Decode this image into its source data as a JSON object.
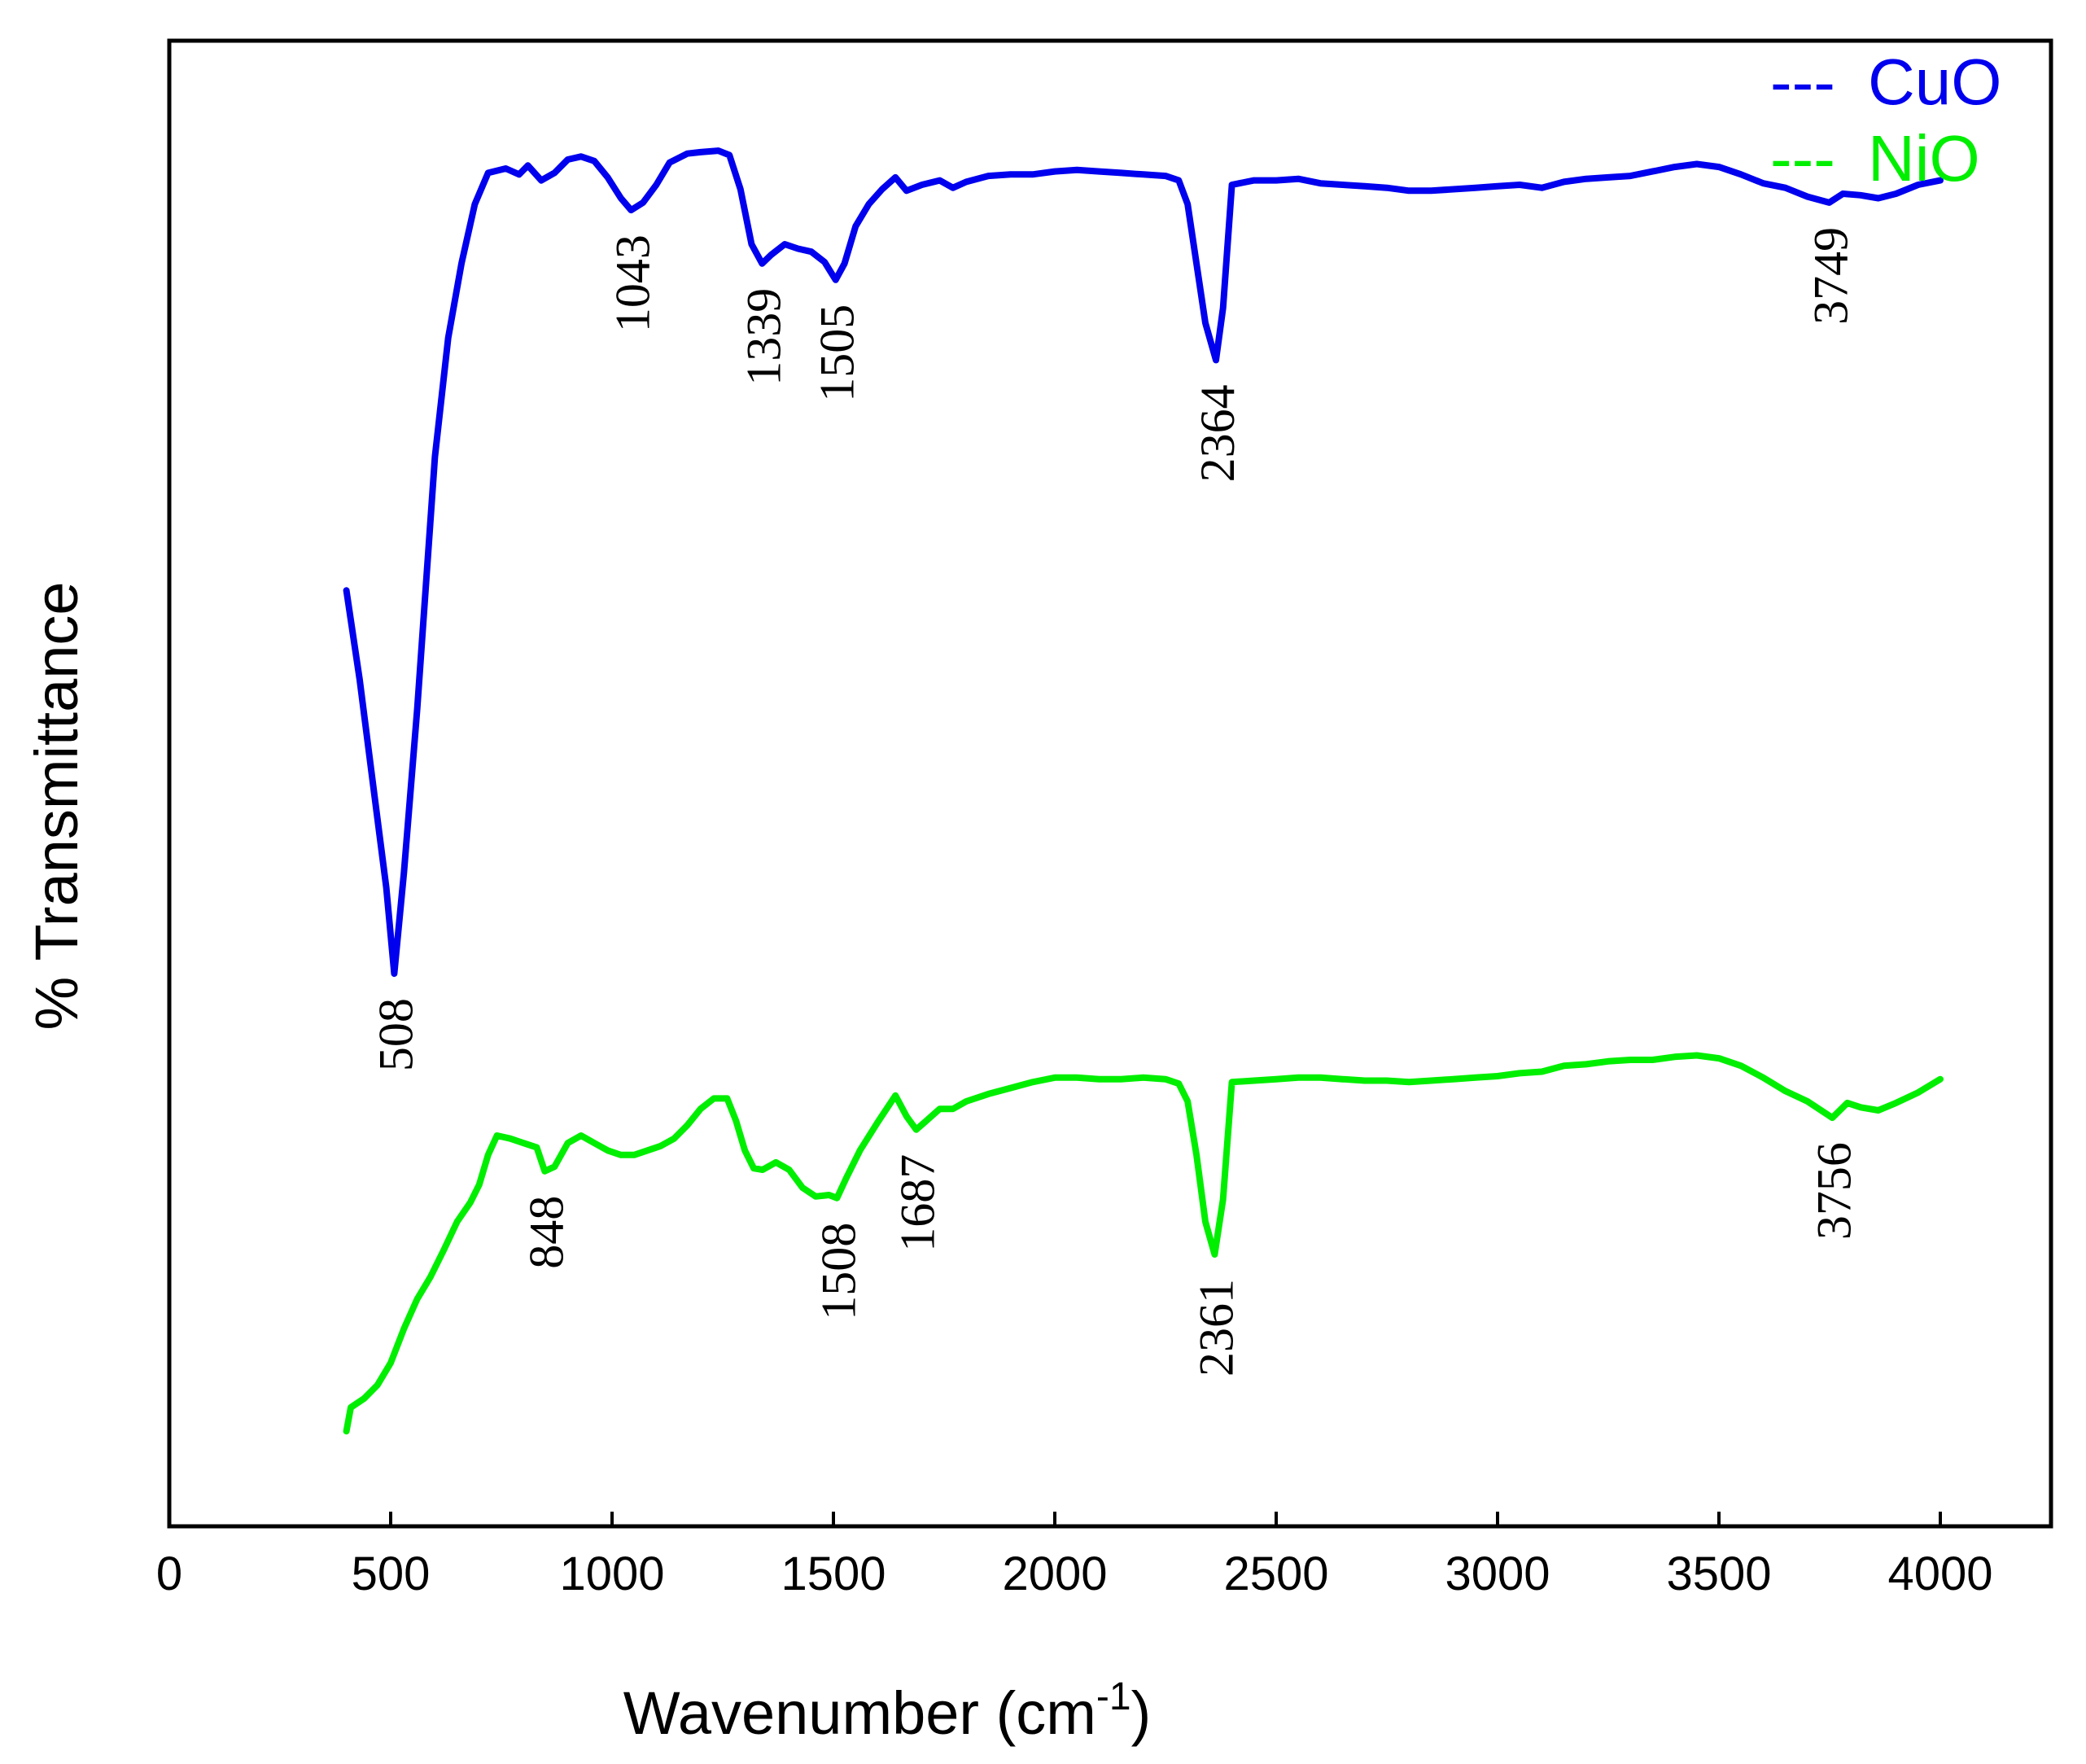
{
  "chart_data": {
    "type": "line",
    "title": "",
    "xlabel": "Wavenumber (cm",
    "xlabel_sup": "-1",
    "xlabel_close": ")",
    "ylabel": "% Transmittance",
    "xlim": [
      0,
      4250
    ],
    "ylim": [
      0,
      100
    ],
    "x_ticks": [
      0,
      500,
      1000,
      1500,
      2000,
      2500,
      3000,
      3500,
      4000
    ],
    "x_tick_labels": [
      "0",
      "500",
      "1000",
      "1500",
      "2000",
      "2500",
      "3000",
      "3500",
      "4000"
    ],
    "grid": false,
    "legend_position": "top-right",
    "series": [
      {
        "name": "CuO",
        "legend_marker": "---",
        "color": "#0000ee",
        "points": [
          [
            400,
            63
          ],
          [
            430,
            57
          ],
          [
            460,
            50
          ],
          [
            490,
            43
          ],
          [
            508,
            37.2
          ],
          [
            530,
            44
          ],
          [
            560,
            55
          ],
          [
            600,
            72
          ],
          [
            630,
            80
          ],
          [
            660,
            85
          ],
          [
            690,
            89
          ],
          [
            720,
            91.1
          ],
          [
            760,
            91.4
          ],
          [
            790,
            91
          ],
          [
            810,
            91.6
          ],
          [
            840,
            90.6
          ],
          [
            870,
            91.1
          ],
          [
            900,
            92
          ],
          [
            930,
            92.2
          ],
          [
            960,
            91.9
          ],
          [
            990,
            90.8
          ],
          [
            1020,
            89.4
          ],
          [
            1043,
            88.6
          ],
          [
            1070,
            89.1
          ],
          [
            1100,
            90.3
          ],
          [
            1130,
            91.8
          ],
          [
            1170,
            92.4
          ],
          [
            1200,
            92.5
          ],
          [
            1240,
            92.6
          ],
          [
            1265,
            92.3
          ],
          [
            1290,
            90
          ],
          [
            1315,
            86.3
          ],
          [
            1339,
            85
          ],
          [
            1360,
            85.6
          ],
          [
            1390,
            86.3
          ],
          [
            1420,
            86
          ],
          [
            1450,
            85.8
          ],
          [
            1480,
            85.1
          ],
          [
            1505,
            83.9
          ],
          [
            1525,
            85
          ],
          [
            1550,
            87.5
          ],
          [
            1580,
            89
          ],
          [
            1610,
            90
          ],
          [
            1640,
            90.8
          ],
          [
            1665,
            89.9
          ],
          [
            1700,
            90.3
          ],
          [
            1740,
            90.6
          ],
          [
            1770,
            90.1
          ],
          [
            1800,
            90.5
          ],
          [
            1850,
            90.9
          ],
          [
            1900,
            91
          ],
          [
            1950,
            91
          ],
          [
            2000,
            91.2
          ],
          [
            2050,
            91.3
          ],
          [
            2100,
            91.2
          ],
          [
            2150,
            91.1
          ],
          [
            2200,
            91
          ],
          [
            2250,
            90.9
          ],
          [
            2280,
            90.6
          ],
          [
            2300,
            89
          ],
          [
            2320,
            85
          ],
          [
            2340,
            81
          ],
          [
            2364,
            78.5
          ],
          [
            2380,
            82
          ],
          [
            2400,
            90.3
          ],
          [
            2450,
            90.6
          ],
          [
            2500,
            90.6
          ],
          [
            2550,
            90.7
          ],
          [
            2600,
            90.4
          ],
          [
            2650,
            90.3
          ],
          [
            2700,
            90.2
          ],
          [
            2750,
            90.1
          ],
          [
            2800,
            89.9
          ],
          [
            2850,
            89.9
          ],
          [
            2900,
            90
          ],
          [
            2950,
            90.1
          ],
          [
            3000,
            90.2
          ],
          [
            3050,
            90.3
          ],
          [
            3100,
            90.1
          ],
          [
            3150,
            90.5
          ],
          [
            3200,
            90.7
          ],
          [
            3250,
            90.8
          ],
          [
            3300,
            90.9
          ],
          [
            3350,
            91.2
          ],
          [
            3400,
            91.5
          ],
          [
            3450,
            91.7
          ],
          [
            3500,
            91.5
          ],
          [
            3550,
            91
          ],
          [
            3600,
            90.4
          ],
          [
            3650,
            90.1
          ],
          [
            3700,
            89.5
          ],
          [
            3749,
            89.1
          ],
          [
            3780,
            89.7
          ],
          [
            3820,
            89.6
          ],
          [
            3860,
            89.4
          ],
          [
            3900,
            89.7
          ],
          [
            3950,
            90.3
          ],
          [
            4000,
            90.6
          ]
        ],
        "peaks": [
          508,
          1043,
          1339,
          1505,
          2364,
          3749
        ],
        "peak_labels": [
          "508",
          "1043",
          "1339",
          "1505",
          "2364",
          "3749"
        ]
      },
      {
        "name": "NiO",
        "legend_marker": "---",
        "color": "#00ee00",
        "points": [
          [
            400,
            6.4
          ],
          [
            410,
            8
          ],
          [
            440,
            8.6
          ],
          [
            470,
            9.5
          ],
          [
            500,
            11
          ],
          [
            530,
            13.3
          ],
          [
            560,
            15.3
          ],
          [
            590,
            16.8
          ],
          [
            620,
            18.6
          ],
          [
            650,
            20.5
          ],
          [
            680,
            21.8
          ],
          [
            700,
            23
          ],
          [
            720,
            25
          ],
          [
            740,
            26.3
          ],
          [
            770,
            26.1
          ],
          [
            800,
            25.8
          ],
          [
            830,
            25.5
          ],
          [
            848,
            23.9
          ],
          [
            870,
            24.2
          ],
          [
            900,
            25.8
          ],
          [
            930,
            26.3
          ],
          [
            960,
            25.8
          ],
          [
            990,
            25.3
          ],
          [
            1020,
            25
          ],
          [
            1050,
            25
          ],
          [
            1080,
            25.3
          ],
          [
            1110,
            25.6
          ],
          [
            1140,
            26.1
          ],
          [
            1170,
            27
          ],
          [
            1200,
            28.1
          ],
          [
            1230,
            28.8
          ],
          [
            1260,
            28.8
          ],
          [
            1280,
            27.3
          ],
          [
            1300,
            25.3
          ],
          [
            1320,
            24.1
          ],
          [
            1340,
            24
          ],
          [
            1370,
            24.5
          ],
          [
            1400,
            24
          ],
          [
            1430,
            22.8
          ],
          [
            1460,
            22.2
          ],
          [
            1490,
            22.3
          ],
          [
            1508,
            22.1
          ],
          [
            1530,
            23.5
          ],
          [
            1560,
            25.3
          ],
          [
            1600,
            27.2
          ],
          [
            1640,
            29
          ],
          [
            1665,
            27.6
          ],
          [
            1687,
            26.7
          ],
          [
            1710,
            27.3
          ],
          [
            1740,
            28.1
          ],
          [
            1770,
            28.1
          ],
          [
            1800,
            28.6
          ],
          [
            1850,
            29.1
          ],
          [
            1900,
            29.5
          ],
          [
            1950,
            29.9
          ],
          [
            2000,
            30.2
          ],
          [
            2050,
            30.2
          ],
          [
            2100,
            30.1
          ],
          [
            2150,
            30.1
          ],
          [
            2200,
            30.2
          ],
          [
            2250,
            30.1
          ],
          [
            2280,
            29.8
          ],
          [
            2300,
            28.6
          ],
          [
            2320,
            25
          ],
          [
            2340,
            20.5
          ],
          [
            2361,
            18.3
          ],
          [
            2380,
            22
          ],
          [
            2400,
            29.9
          ],
          [
            2450,
            30
          ],
          [
            2500,
            30.1
          ],
          [
            2550,
            30.2
          ],
          [
            2600,
            30.2
          ],
          [
            2650,
            30.1
          ],
          [
            2700,
            30
          ],
          [
            2750,
            30
          ],
          [
            2800,
            29.9
          ],
          [
            2850,
            30
          ],
          [
            2900,
            30.1
          ],
          [
            2950,
            30.2
          ],
          [
            3000,
            30.3
          ],
          [
            3050,
            30.5
          ],
          [
            3100,
            30.6
          ],
          [
            3150,
            31
          ],
          [
            3200,
            31.1
          ],
          [
            3250,
            31.3
          ],
          [
            3300,
            31.4
          ],
          [
            3350,
            31.4
          ],
          [
            3400,
            31.6
          ],
          [
            3450,
            31.7
          ],
          [
            3500,
            31.5
          ],
          [
            3550,
            31
          ],
          [
            3600,
            30.2
          ],
          [
            3650,
            29.3
          ],
          [
            3700,
            28.6
          ],
          [
            3756,
            27.5
          ],
          [
            3790,
            28.5
          ],
          [
            3820,
            28.2
          ],
          [
            3860,
            28
          ],
          [
            3900,
            28.5
          ],
          [
            3950,
            29.2
          ],
          [
            4000,
            30.1
          ]
        ],
        "peaks": [
          848,
          1508,
          1687,
          2361,
          3756
        ],
        "peak_labels": [
          "848",
          "1508",
          "1687",
          "2361",
          "3756"
        ]
      }
    ]
  }
}
